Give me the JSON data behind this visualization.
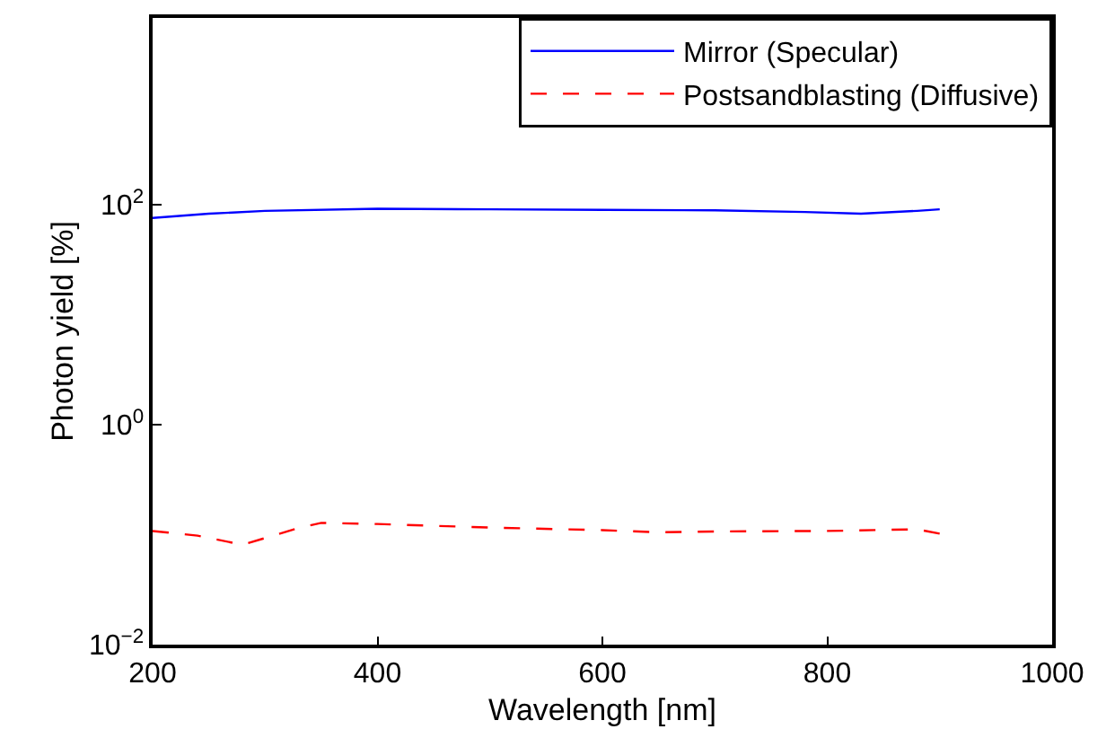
{
  "chart_data": {
    "type": "line",
    "xlabel": "Wavelength [nm]",
    "ylabel": "Photon yield [%]",
    "log": "y",
    "xlim": [
      200,
      1000
    ],
    "xticks": [
      200,
      400,
      600,
      800,
      1000
    ],
    "ylim": [
      0.01,
      5000
    ],
    "yticks": [
      {
        "value": 0.01,
        "label": "10$^{−2}$"
      },
      {
        "value": 1,
        "label": "10$^{0}$"
      },
      {
        "value": 100,
        "label": "10$^{2}$"
      }
    ],
    "legend": "top right",
    "series": [
      {
        "name": "Mirror (Specular)",
        "color": "#0000ff",
        "line_style": "solid",
        "x": [
          200,
          250,
          300,
          400,
          500,
          600,
          700,
          780,
          830,
          880,
          900
        ],
        "values": [
          76,
          83,
          88,
          92,
          91,
          90,
          89,
          86,
          83,
          88,
          91
        ]
      },
      {
        "name": "Postsandblasting (Diffusive)",
        "color": "#ff0000",
        "line_style": "dashed",
        "x": [
          200,
          240,
          280,
          330,
          350,
          400,
          500,
          600,
          650,
          700,
          800,
          880,
          900
        ],
        "values": [
          0.108,
          0.098,
          0.081,
          0.115,
          0.128,
          0.125,
          0.116,
          0.11,
          0.105,
          0.107,
          0.108,
          0.112,
          0.102
        ]
      }
    ]
  }
}
